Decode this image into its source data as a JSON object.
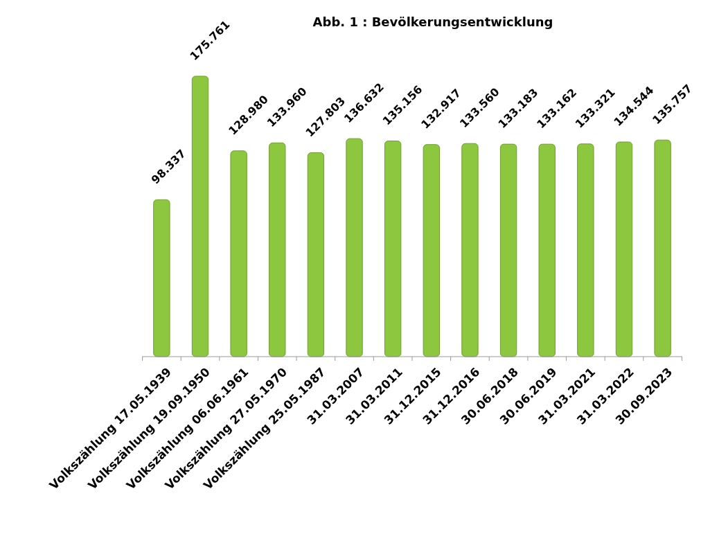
{
  "chart_data": {
    "type": "bar",
    "title": "Abb. 1 : Bevölkerungsentwicklung",
    "categories": [
      "Volkszählung 17.05.1939",
      "Volkszählung 19.09.1950",
      "Volkszählung 06.06.1961",
      "Volkszählung 27.05.1970",
      "Volkszählung 25.05.1987",
      "31.03.2007",
      "31.03.2011",
      "31.12.2015",
      "31.12.2016",
      "30.06.2018",
      "30.06.2019",
      "31.03.2021",
      "31.03.2022",
      "30.09.2023"
    ],
    "values": [
      98337,
      175761,
      128980,
      133960,
      127803,
      136632,
      135156,
      132917,
      133560,
      133183,
      133162,
      133321,
      134544,
      135757
    ],
    "value_labels": [
      "98.337",
      "175.761",
      "128.980",
      "133.960",
      "127.803",
      "136.632",
      "135.156",
      "132.917",
      "133.560",
      "133.183",
      "133.162",
      "133.321",
      "134.544",
      "135.757"
    ],
    "color": "#8dc63f",
    "tick_labels": "x"
  }
}
